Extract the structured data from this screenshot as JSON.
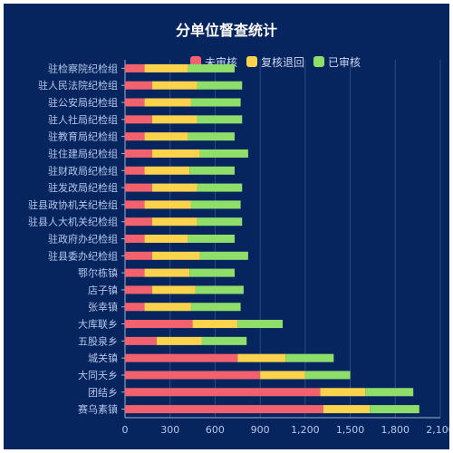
{
  "chart_data": {
    "type": "bar",
    "orientation": "horizontal",
    "stacked": true,
    "title": "分单位督查统计",
    "xlabel": "",
    "ylabel": "",
    "xlim": [
      0,
      2100
    ],
    "xticks": [
      0,
      300,
      600,
      900,
      1200,
      1500,
      1800,
      2100
    ],
    "xtick_labels": [
      "0",
      "300",
      "600",
      "900",
      "1,200",
      "1,500",
      "1,800",
      "2,100"
    ],
    "grid": true,
    "legend_position": "top-right",
    "categories": [
      "驻检察院纪检组",
      "驻人民法院纪检组",
      "驻公安局纪检组",
      "驻人社局纪检组",
      "驻教育局纪检组",
      "驻住建局纪检组",
      "驻财政局纪检组",
      "驻发改局纪检组",
      "驻县政协机关纪检组",
      "驻县人大机关纪检组",
      "驻政府办纪检组",
      "驻县委办纪检组",
      "鄂尔栋镇",
      "店子镇",
      "张幸镇",
      "大库联乡",
      "五股泉乡",
      "城关镇",
      "大同夭乡",
      "团结乡",
      "赛乌素镇"
    ],
    "series": [
      {
        "name": "未审核",
        "color": "#f2616e",
        "values": [
          130,
          180,
          130,
          180,
          130,
          180,
          130,
          180,
          130,
          180,
          130,
          180,
          130,
          180,
          130,
          450,
          210,
          750,
          900,
          1300,
          1320
        ]
      },
      {
        "name": "复核退回",
        "color": "#fbd34d",
        "values": [
          290,
          300,
          310,
          300,
          290,
          320,
          300,
          300,
          310,
          300,
          290,
          320,
          300,
          290,
          310,
          300,
          300,
          320,
          300,
          300,
          310
        ]
      },
      {
        "name": "已审核",
        "color": "#8fde6a",
        "values": [
          310,
          300,
          330,
          300,
          310,
          320,
          300,
          300,
          330,
          300,
          310,
          320,
          300,
          320,
          330,
          300,
          300,
          320,
          300,
          320,
          330
        ]
      }
    ]
  }
}
